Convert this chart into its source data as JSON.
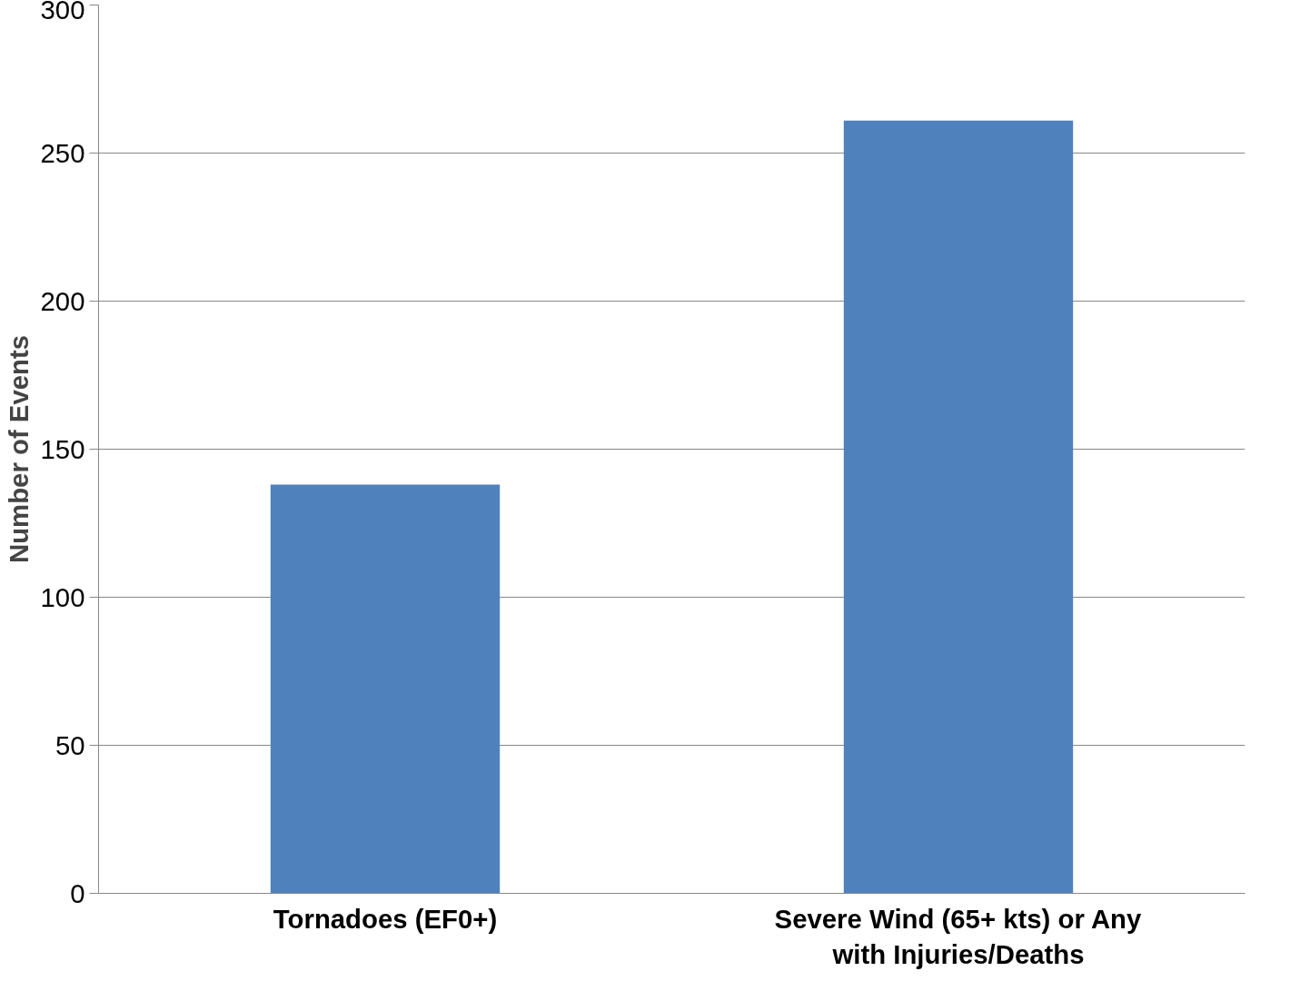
{
  "chart_data": {
    "type": "bar",
    "ylabel": "Number of Events",
    "categories": [
      "Tornadoes (EF0+)",
      "Severe Wind (65+ kts) or Any\nwith Injuries/Deaths"
    ],
    "values": [
      138,
      261
    ],
    "color": "#4f81bd",
    "ylim": [
      0,
      300
    ],
    "yticks": [
      0,
      50,
      100,
      150,
      200,
      250,
      300
    ],
    "grid": "y"
  }
}
